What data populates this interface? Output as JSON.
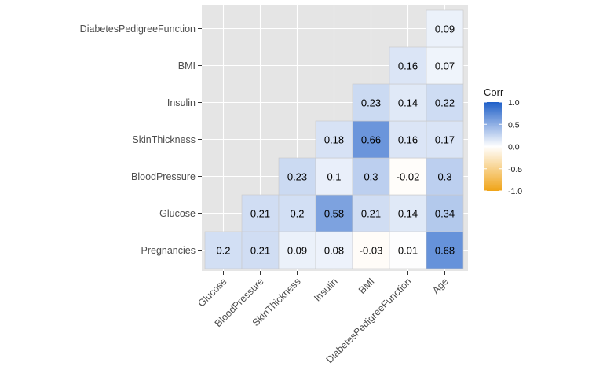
{
  "chart_data": {
    "type": "heatmap",
    "x_categories": [
      "Glucose",
      "BloodPressure",
      "SkinThickness",
      "Insulin",
      "BMI",
      "DiabetesPedigreeFunction",
      "Age"
    ],
    "y_categories": [
      "Pregnancies",
      "Glucose",
      "BloodPressure",
      "SkinThickness",
      "Insulin",
      "BMI",
      "DiabetesPedigreeFunction"
    ],
    "cells": [
      {
        "x": "Glucose",
        "y": "Pregnancies",
        "value": 0.2
      },
      {
        "x": "BloodPressure",
        "y": "Pregnancies",
        "value": 0.21
      },
      {
        "x": "SkinThickness",
        "y": "Pregnancies",
        "value": 0.09
      },
      {
        "x": "Insulin",
        "y": "Pregnancies",
        "value": 0.08
      },
      {
        "x": "BMI",
        "y": "Pregnancies",
        "value": -0.03
      },
      {
        "x": "DiabetesPedigreeFunction",
        "y": "Pregnancies",
        "value": 0.01
      },
      {
        "x": "Age",
        "y": "Pregnancies",
        "value": 0.68
      },
      {
        "x": "BloodPressure",
        "y": "Glucose",
        "value": 0.21
      },
      {
        "x": "SkinThickness",
        "y": "Glucose",
        "value": 0.2
      },
      {
        "x": "Insulin",
        "y": "Glucose",
        "value": 0.58
      },
      {
        "x": "BMI",
        "y": "Glucose",
        "value": 0.21
      },
      {
        "x": "DiabetesPedigreeFunction",
        "y": "Glucose",
        "value": 0.14
      },
      {
        "x": "Age",
        "y": "Glucose",
        "value": 0.34
      },
      {
        "x": "SkinThickness",
        "y": "BloodPressure",
        "value": 0.23
      },
      {
        "x": "Insulin",
        "y": "BloodPressure",
        "value": 0.1
      },
      {
        "x": "BMI",
        "y": "BloodPressure",
        "value": 0.3
      },
      {
        "x": "DiabetesPedigreeFunction",
        "y": "BloodPressure",
        "value": -0.02
      },
      {
        "x": "Age",
        "y": "BloodPressure",
        "value": 0.3
      },
      {
        "x": "Insulin",
        "y": "SkinThickness",
        "value": 0.18
      },
      {
        "x": "BMI",
        "y": "SkinThickness",
        "value": 0.66
      },
      {
        "x": "DiabetesPedigreeFunction",
        "y": "SkinThickness",
        "value": 0.16
      },
      {
        "x": "Age",
        "y": "SkinThickness",
        "value": 0.17
      },
      {
        "x": "BMI",
        "y": "Insulin",
        "value": 0.23
      },
      {
        "x": "DiabetesPedigreeFunction",
        "y": "Insulin",
        "value": 0.14
      },
      {
        "x": "Age",
        "y": "Insulin",
        "value": 0.22
      },
      {
        "x": "DiabetesPedigreeFunction",
        "y": "BMI",
        "value": 0.16
      },
      {
        "x": "Age",
        "y": "BMI",
        "value": 0.07
      },
      {
        "x": "Age",
        "y": "DiabetesPedigreeFunction",
        "value": 0.09
      }
    ],
    "title": "",
    "xlabel": "",
    "ylabel": "",
    "legend": {
      "title": "Corr",
      "ticks": [
        1.0,
        0.5,
        0.0,
        -0.5,
        -1.0
      ],
      "tick_labels": [
        "1.0",
        "0.5",
        "0.0",
        "-0.5",
        "-1.0"
      ],
      "placement": "right",
      "range": [
        -1,
        1
      ]
    },
    "colors": {
      "high": "#1e5fc8",
      "mid": "#ffffff",
      "low": "#f0a418",
      "panel": "#e5e5e5",
      "grid": "#ffffff",
      "cell_border": "#c8c8c8"
    },
    "grid": true
  }
}
